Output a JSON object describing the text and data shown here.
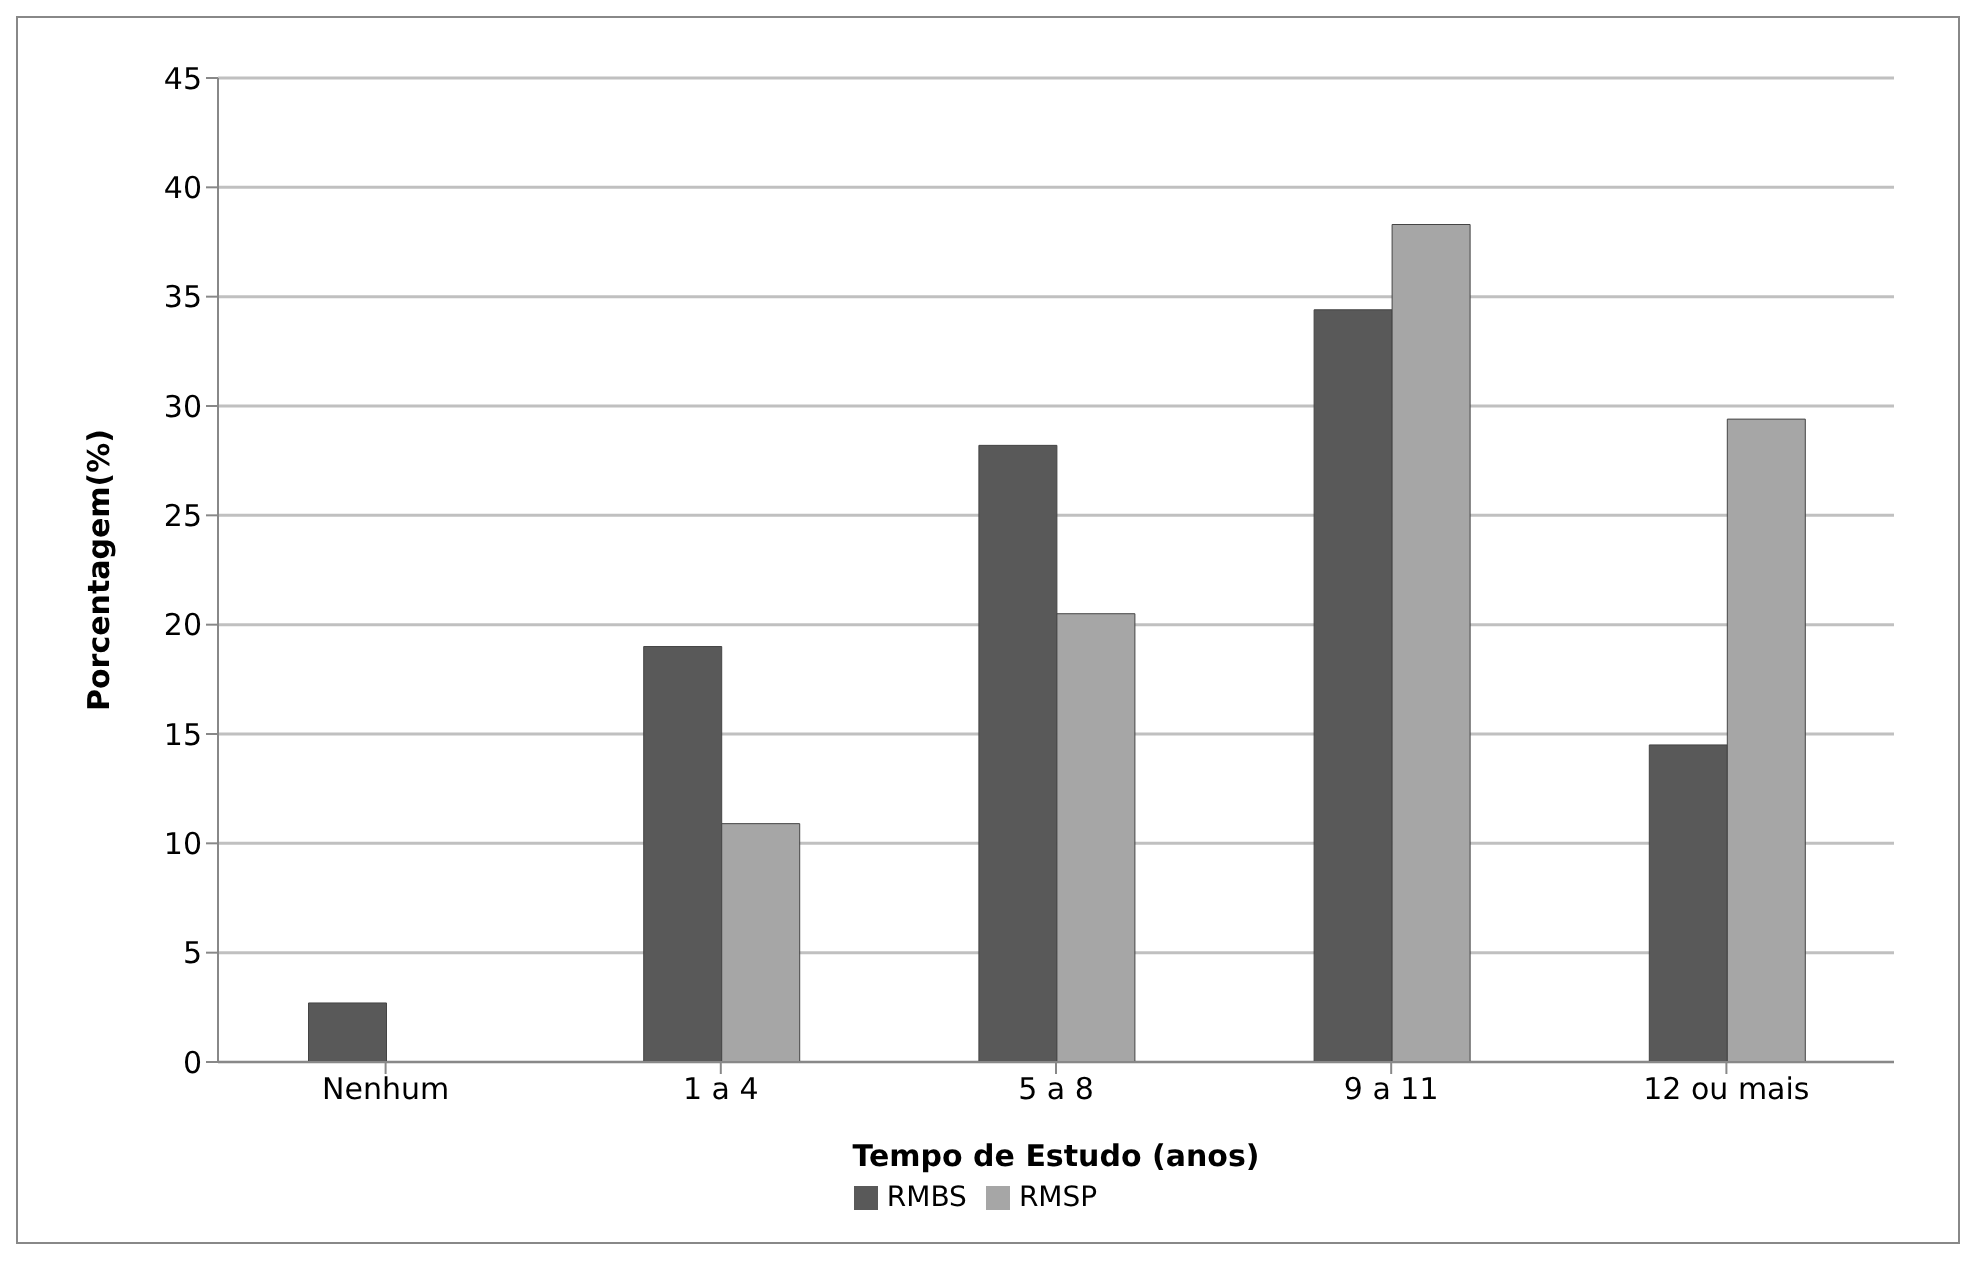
{
  "chart_data": {
    "type": "bar",
    "xlabel": "Tempo de Estudo (anos)",
    "ylabel": "Porcentagem(%)",
    "categories": [
      "Nenhum",
      "1 a 4",
      "5 a 8",
      "9 a 11",
      "12 ou mais"
    ],
    "series": [
      {
        "name": "RMBS",
        "color": "#595959",
        "values": [
          2.7,
          19.0,
          28.2,
          34.4,
          14.5
        ]
      },
      {
        "name": "RMSP",
        "color": "#a6a6a6",
        "values": [
          0,
          10.9,
          20.5,
          38.3,
          29.4
        ]
      }
    ],
    "ylim": [
      0,
      45
    ],
    "yticks": [
      0,
      5,
      10,
      15,
      20,
      25,
      30,
      35,
      40,
      45
    ],
    "grid": "y",
    "legend": "bottom"
  }
}
